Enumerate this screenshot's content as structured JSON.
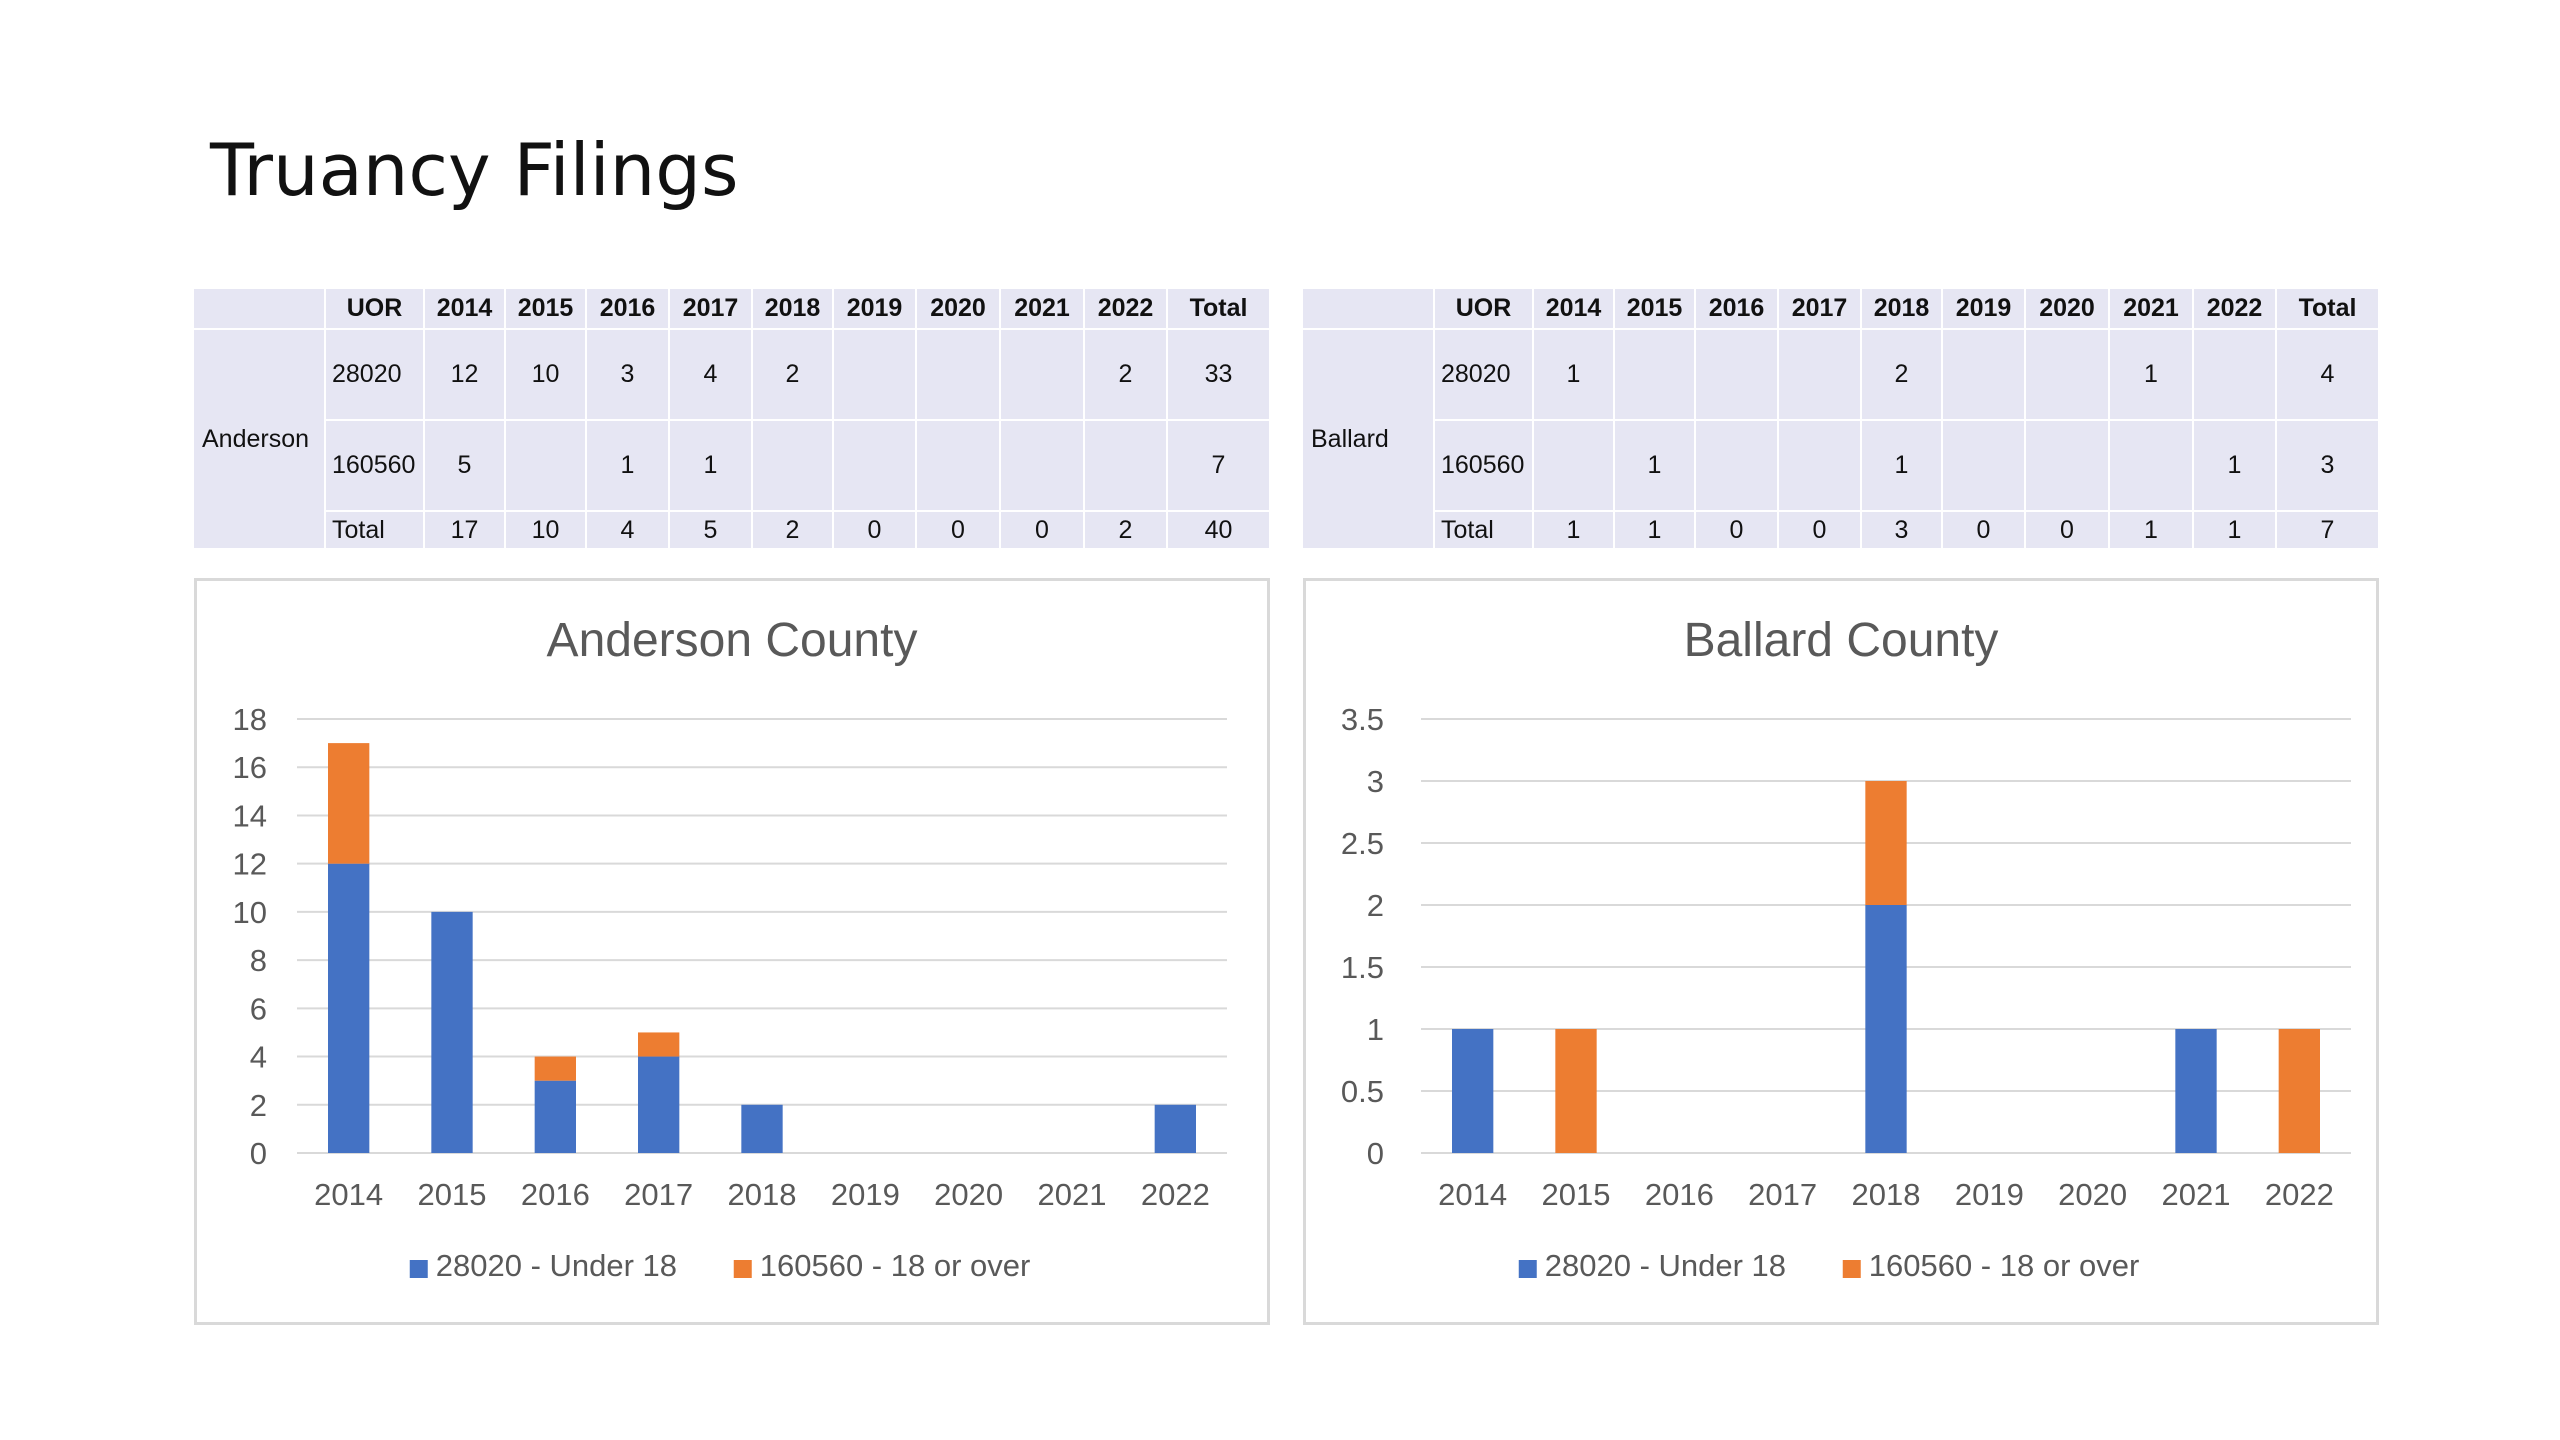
{
  "slide": {
    "title": "Truancy Filings"
  },
  "colors": {
    "under18": "#4472C4",
    "over18": "#ED7D31",
    "grid": "#d9d9d9",
    "table_bg": "#e6e6f3"
  },
  "tables": {
    "anderson": {
      "county": "Anderson",
      "headers": [
        "",
        "UOR",
        "2014",
        "2015",
        "2016",
        "2017",
        "2018",
        "2019",
        "2020",
        "2021",
        "2022",
        "Total"
      ],
      "rows": [
        {
          "uor": "28020",
          "values": [
            "12",
            "10",
            "3",
            "4",
            "2",
            "",
            "",
            "",
            "2"
          ],
          "total": "33"
        },
        {
          "uor": "160560",
          "values": [
            "5",
            "",
            "1",
            "1",
            "",
            "",
            "",
            "",
            ""
          ],
          "total": "7"
        }
      ],
      "total_row": {
        "label": "Total",
        "values": [
          "17",
          "10",
          "4",
          "5",
          "2",
          "0",
          "0",
          "0",
          "2"
        ],
        "total": "40"
      }
    },
    "ballard": {
      "county": "Ballard",
      "headers": [
        "",
        "UOR",
        "2014",
        "2015",
        "2016",
        "2017",
        "2018",
        "2019",
        "2020",
        "2021",
        "2022",
        "Total"
      ],
      "rows": [
        {
          "uor": "28020",
          "values": [
            "1",
            "",
            "",
            "",
            "2",
            "",
            "",
            "1",
            ""
          ],
          "total": "4"
        },
        {
          "uor": "160560",
          "values": [
            "",
            "1",
            "",
            "",
            "1",
            "",
            "",
            "",
            "1"
          ],
          "total": "3"
        }
      ],
      "total_row": {
        "label": "Total",
        "values": [
          "1",
          "1",
          "0",
          "0",
          "3",
          "0",
          "0",
          "1",
          "1"
        ],
        "total": "7"
      }
    }
  },
  "chart_data": [
    {
      "type": "bar",
      "stacked": true,
      "title": "Anderson County",
      "categories": [
        "2014",
        "2015",
        "2016",
        "2017",
        "2018",
        "2019",
        "2020",
        "2021",
        "2022"
      ],
      "series": [
        {
          "name": "28020 - Under 18",
          "values": [
            12,
            10,
            3,
            4,
            2,
            0,
            0,
            0,
            2
          ]
        },
        {
          "name": "160560 - 18 or over",
          "values": [
            5,
            0,
            1,
            1,
            0,
            0,
            0,
            0,
            0
          ]
        }
      ],
      "ylim": [
        0,
        18
      ],
      "yticks": [
        "0",
        "2",
        "4",
        "6",
        "8",
        "10",
        "12",
        "14",
        "16",
        "18"
      ],
      "grid": true,
      "legend": "bottom"
    },
    {
      "type": "bar",
      "stacked": true,
      "title": "Ballard County",
      "categories": [
        "2014",
        "2015",
        "2016",
        "2017",
        "2018",
        "2019",
        "2020",
        "2021",
        "2022"
      ],
      "series": [
        {
          "name": "28020 - Under 18",
          "values": [
            1,
            0,
            0,
            0,
            2,
            0,
            0,
            1,
            0
          ]
        },
        {
          "name": "160560 - 18 or over",
          "values": [
            0,
            1,
            0,
            0,
            1,
            0,
            0,
            0,
            1
          ]
        }
      ],
      "ylim": [
        0,
        3.5
      ],
      "yticks": [
        "0",
        "0.5",
        "1",
        "1.5",
        "2",
        "2.5",
        "3",
        "3.5"
      ],
      "grid": true,
      "legend": "bottom"
    }
  ]
}
